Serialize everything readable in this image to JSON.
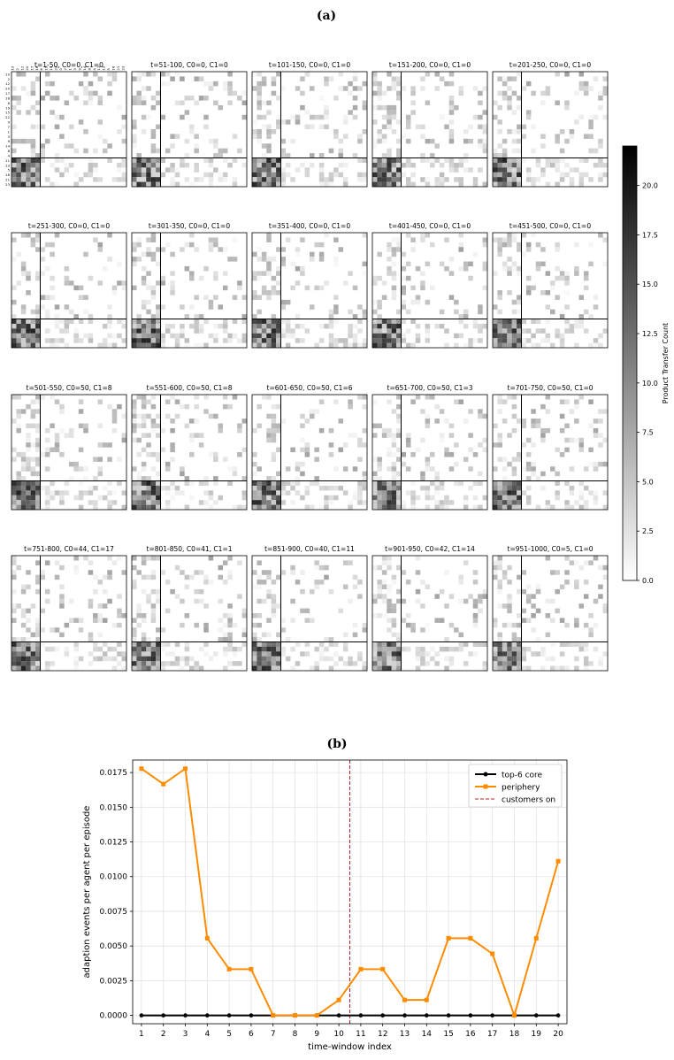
{
  "panel_a": {
    "heading": "(a)",
    "colorbar": {
      "label": "Product Transfer Count",
      "ticks": [
        "0.0",
        "2.5",
        "5.0",
        "7.5",
        "10.0",
        "12.5",
        "15.0",
        "17.5",
        "20.0"
      ],
      "tick_values": [
        0,
        2.5,
        5,
        7.5,
        10,
        12.5,
        15,
        17.5,
        20
      ],
      "range": [
        0,
        22
      ],
      "colormap": "Greys"
    },
    "first_axis_labels": [
      "10",
      "2",
      "12",
      "20",
      "17",
      "16",
      "6",
      "19",
      "15",
      "22",
      "0",
      "7",
      "1",
      "3",
      "9",
      "14",
      "8",
      "4",
      "11",
      "13",
      "5",
      "18",
      "21",
      "23"
    ],
    "heatmaps": [
      {
        "title": "t=1-50, C0=0, C1=0",
        "seed": 1
      },
      {
        "title": "t=51-100, C0=0, C1=0",
        "seed": 2
      },
      {
        "title": "t=101-150, C0=0, C1=0",
        "seed": 3
      },
      {
        "title": "t=151-200, C0=0, C1=0",
        "seed": 4
      },
      {
        "title": "t=201-250, C0=0, C1=0",
        "seed": 5
      },
      {
        "title": "t=251-300, C0=0, C1=0",
        "seed": 6
      },
      {
        "title": "t=301-350, C0=0, C1=0",
        "seed": 7
      },
      {
        "title": "t=351-400, C0=0, C1=0",
        "seed": 8
      },
      {
        "title": "t=401-450, C0=0, C1=0",
        "seed": 9
      },
      {
        "title": "t=451-500, C0=0, C1=0",
        "seed": 10
      },
      {
        "title": "t=501-550, C0=50, C1=8",
        "seed": 11
      },
      {
        "title": "t=551-600, C0=50, C1=8",
        "seed": 12
      },
      {
        "title": "t=601-650, C0=50, C1=6",
        "seed": 13
      },
      {
        "title": "t=651-700, C0=50, C1=3",
        "seed": 14
      },
      {
        "title": "t=701-750, C0=50, C1=0",
        "seed": 15
      },
      {
        "title": "t=751-800, C0=44, C1=17",
        "seed": 16
      },
      {
        "title": "t=801-850, C0=41, C1=1",
        "seed": 17
      },
      {
        "title": "t=851-900, C0=40, C1=11",
        "seed": 18
      },
      {
        "title": "t=901-950, C0=42, C1=14",
        "seed": 19
      },
      {
        "title": "t=951-1000, C0=5, C1=0",
        "seed": 20
      }
    ]
  },
  "panel_b": {
    "heading": "(b)",
    "colors": {
      "core": "#000000",
      "periphery": "#ff8c00",
      "customers": "#b22222"
    }
  },
  "chart_data": [
    {
      "type": "heatmap",
      "description_note": "",
      "grid": "24x24 per window",
      "windows": 20
    },
    {
      "type": "line",
      "xlabel": "time-window index",
      "ylabel": "adaption events per agent per episode",
      "xlim": [
        0.6,
        20.4
      ],
      "ylim": [
        -0.0006,
        0.0184
      ],
      "x": [
        1,
        2,
        3,
        4,
        5,
        6,
        7,
        8,
        9,
        10,
        11,
        12,
        13,
        14,
        15,
        16,
        17,
        18,
        19,
        20
      ],
      "x_ticks": [
        "1",
        "2",
        "3",
        "4",
        "5",
        "6",
        "7",
        "8",
        "9",
        "10",
        "11",
        "12",
        "13",
        "14",
        "15",
        "16",
        "17",
        "18",
        "19",
        "20"
      ],
      "y_ticks": [
        "0.0000",
        "0.0025",
        "0.0050",
        "0.0075",
        "0.0100",
        "0.0125",
        "0.0150",
        "0.0175"
      ],
      "y_tick_values": [
        0,
        0.0025,
        0.005,
        0.0075,
        0.01,
        0.0125,
        0.015,
        0.0175
      ],
      "grid": true,
      "legend_position": "top-right",
      "series": [
        {
          "name": "top-6 core",
          "color": "#000000",
          "marker": "circle",
          "values": [
            0,
            0,
            0,
            0,
            0,
            0,
            0,
            0,
            0,
            0,
            0,
            0,
            0,
            0,
            0,
            0,
            0,
            0,
            0,
            0
          ]
        },
        {
          "name": "periphery",
          "color": "#ff8c00",
          "marker": "square",
          "values": [
            0.01778,
            0.01667,
            0.01778,
            0.00556,
            0.00333,
            0.00333,
            0,
            0,
            0,
            0.00111,
            0.00333,
            0.00333,
            0.00111,
            0.00111,
            0.00556,
            0.00556,
            0.00444,
            0,
            0.00556,
            0.01111
          ]
        }
      ],
      "vline": {
        "name": "customers on",
        "x": 10.5,
        "color": "#b22222",
        "style": "dashed"
      }
    }
  ]
}
